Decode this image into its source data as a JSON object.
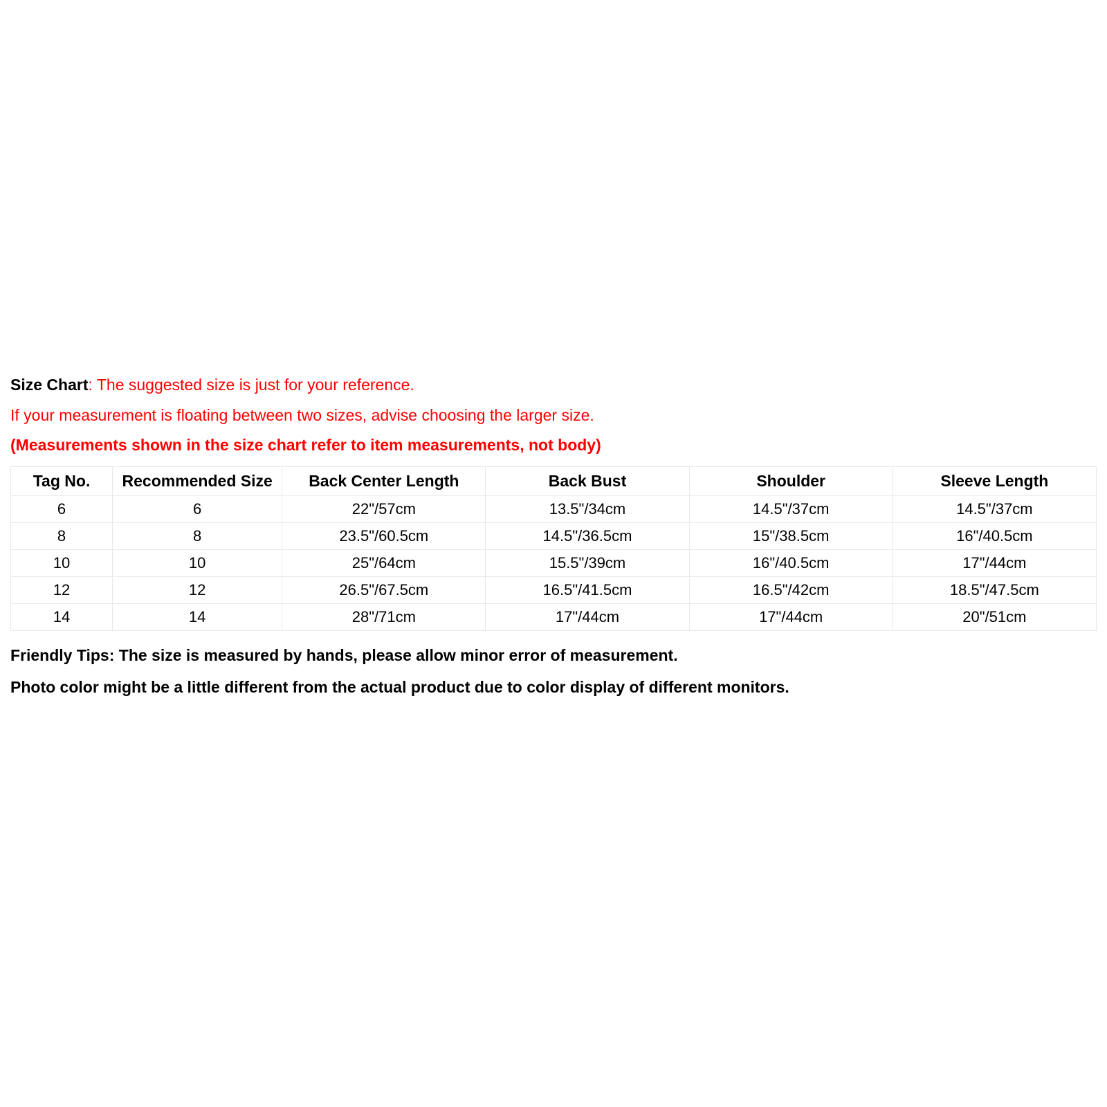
{
  "intro": {
    "label": "Size Chart",
    "line1_rest": ": The suggested size is just for your reference.",
    "line2": "If your measurement is floating between two sizes, advise choosing the larger size.",
    "line3": "(Measurements shown in the size chart refer to item measurements, not body)"
  },
  "table": {
    "columns": [
      "Tag No.",
      "Recommended Size",
      "Back Center Length",
      "Back Bust",
      "Shoulder",
      "Sleeve Length"
    ],
    "column_widths_pct": [
      9,
      15,
      18,
      18,
      18,
      18
    ],
    "rows": [
      [
        "6",
        "6",
        "22\"/57cm",
        "13.5\"/34cm",
        "14.5\"/37cm",
        "14.5\"/37cm"
      ],
      [
        "8",
        "8",
        "23.5\"/60.5cm",
        "14.5\"/36.5cm",
        "15\"/38.5cm",
        "16\"/40.5cm"
      ],
      [
        "10",
        "10",
        "25\"/64cm",
        "15.5\"/39cm",
        "16\"/40.5cm",
        "17\"/44cm"
      ],
      [
        "12",
        "12",
        "26.5\"/67.5cm",
        "16.5\"/41.5cm",
        "16.5\"/42cm",
        "18.5\"/47.5cm"
      ],
      [
        "14",
        "14",
        "28\"/71cm",
        "17\"/44cm",
        "17\"/44cm",
        "20\"/51cm"
      ]
    ],
    "border_color": "#e8e8e8",
    "header_fontsize": 23,
    "cell_fontsize": 22,
    "text_color": "#000000",
    "background_color": "#ffffff"
  },
  "tips": {
    "line1": "Friendly Tips: The size is measured by hands, please allow minor error of measurement.",
    "line2": "Photo color might be a little different from the actual product due to color display of different monitors."
  },
  "colors": {
    "red": "#ff0000",
    "black": "#000000",
    "border": "#e8e8e8",
    "background": "#ffffff"
  },
  "typography": {
    "font_family": "Arial",
    "body_fontsize": 23,
    "line_height": 1.9
  }
}
